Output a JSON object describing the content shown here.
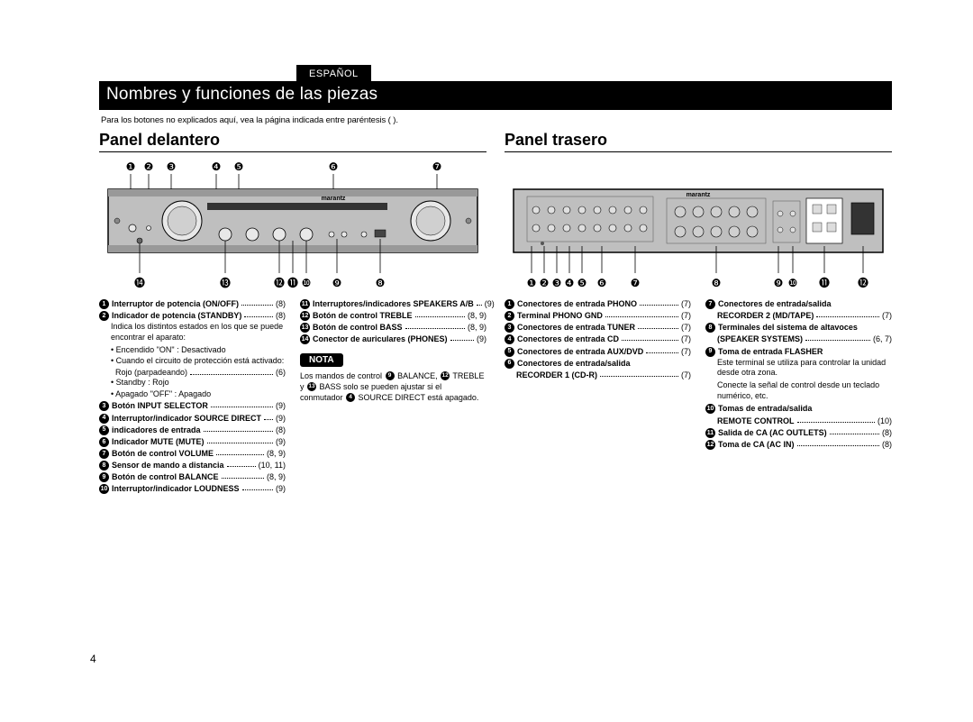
{
  "language_badge": "ESPAÑOL",
  "main_title": "Nombres y funciones de las piezas",
  "intro_text": "Para los botones no explicados aquí, vea la página indicada entre paréntesis (  ).",
  "panel_front": {
    "heading": "Panel delantero",
    "top_callouts": [
      "❶",
      "❷",
      "❸",
      "❹",
      "❺",
      "❻",
      "❼"
    ],
    "bottom_callouts": [
      "⓮",
      "⓭",
      "⓬",
      "⓫",
      "❿",
      "❾",
      "❽"
    ],
    "diagram": {
      "brand": "marantz",
      "body_color": "#bfbfbf",
      "outline_color": "#000000",
      "knob_color": "#e8e8e8"
    },
    "col1": [
      {
        "n": "1",
        "label": "Interruptor de potencia (ON/OFF)",
        "pg": "(8)"
      },
      {
        "n": "2",
        "label": "Indicador de potencia (STANDBY)",
        "pg": "(8)",
        "desc": "Indica los distintos estados en los que se puede encontrar el aparato:",
        "subs": [
          {
            "b": true,
            "t": "Encendido \"ON\" : Desactivado"
          },
          {
            "b": true,
            "t": "Cuando el circuito de protección está activado:"
          },
          {
            "dots": true,
            "t": "Rojo (parpadeando)",
            "pg": "(6)"
          },
          {
            "b": true,
            "t": "Standby : Rojo"
          },
          {
            "b": true,
            "t": "Apagado \"OFF\" : Apagado"
          }
        ]
      },
      {
        "n": "3",
        "label": "Botón INPUT SELECTOR",
        "pg": "(9)"
      },
      {
        "n": "4",
        "label": "Interruptor/indicador SOURCE DIRECT",
        "pg": "(9)"
      },
      {
        "n": "5",
        "label": "indicadores de entrada",
        "pg": "(8)"
      },
      {
        "n": "6",
        "label": "Indicador MUTE (MUTE)",
        "pg": "(9)"
      },
      {
        "n": "7",
        "label": "Botón de control VOLUME",
        "pg": "(8, 9)"
      },
      {
        "n": "8",
        "label": "Sensor de mando a distancia",
        "pg": "(10, 11)"
      },
      {
        "n": "9",
        "label": "Botón de control BALANCE",
        "pg": "(8, 9)"
      },
      {
        "n": "10",
        "label": "Interruptor/indicador LOUDNESS",
        "pg": "(9)"
      }
    ],
    "col2": [
      {
        "n": "11",
        "label": "Interruptores/indicadores SPEAKERS A/B",
        "pg": "(9)"
      },
      {
        "n": "12",
        "label": "Botón de control TREBLE",
        "pg": "(8, 9)"
      },
      {
        "n": "13",
        "label": "Botón de control BASS",
        "pg": "(8, 9)"
      },
      {
        "n": "14",
        "label": "Conector de auriculares (PHONES)",
        "pg": "(9)"
      }
    ],
    "nota": {
      "title": "NOTA",
      "line": "Los mandos de control {9} BALANCE, {12} TREBLE y {13} BASS solo se pueden ajustar si el conmutador {4} SOURCE DIRECT está apagado."
    }
  },
  "panel_rear": {
    "heading": "Panel trasero",
    "bottom_callouts": [
      "❶",
      "❷",
      "❸",
      "❹",
      "❺",
      "❻",
      "❼",
      "❽",
      "❾",
      "❿",
      "⓫",
      "⓬"
    ],
    "diagram": {
      "brand": "marantz",
      "body_color": "#bfbfbf",
      "outline_color": "#000000",
      "connector_color": "#e0e0e0"
    },
    "col1": [
      {
        "n": "1",
        "label": "Conectores de entrada PHONO",
        "pg": "(7)"
      },
      {
        "n": "2",
        "label": "Terminal PHONO GND",
        "pg": "(7)"
      },
      {
        "n": "3",
        "label": "Conectores de entrada TUNER",
        "pg": "(7)"
      },
      {
        "n": "4",
        "label": "Conectores de entrada CD",
        "pg": "(7)"
      },
      {
        "n": "5",
        "label": "Conectores de entrada AUX/DVD",
        "pg": "(7)"
      },
      {
        "n": "6",
        "label": "Conectores de entrada/salida",
        "two_line": true,
        "label2": "RECORDER 1 (CD-R)",
        "pg": "(7)"
      }
    ],
    "col2": [
      {
        "n": "7",
        "label": "Conectores de entrada/salida",
        "two_line": true,
        "label2": "RECORDER 2 (MD/TAPE)",
        "pg": "(7)"
      },
      {
        "n": "8",
        "label": "Terminales del sistema de altavoces",
        "two_line": true,
        "label2": "(SPEAKER SYSTEMS)",
        "pg": "(6, 7)"
      },
      {
        "n": "9",
        "label": "Toma de entrada FLASHER",
        "desc": "Este terminal se utiliza para controlar la unidad desde otra zona.\nConecte la señal de control desde un teclado numérico, etc."
      },
      {
        "n": "10",
        "label": "Tomas de entrada/salida",
        "two_line": true,
        "label2": "REMOTE CONTROL",
        "pg": "(10)"
      },
      {
        "n": "11",
        "label": "Salida de CA (AC OUTLETS)",
        "pg": "(8)"
      },
      {
        "n": "12",
        "label": "Toma de CA (AC IN)",
        "pg": "(8)"
      }
    ]
  },
  "page_number": "4"
}
